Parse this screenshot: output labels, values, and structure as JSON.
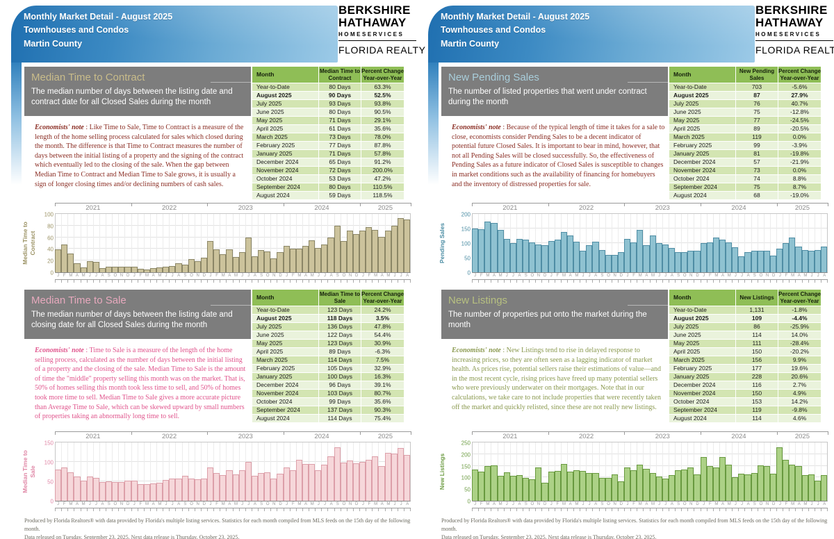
{
  "header": {
    "line1": "Monthly Market Detail - August 2025",
    "line2": "Townhouses and Condos",
    "line3": "Martin County"
  },
  "brand": {
    "line1": "BERKSHIRE",
    "line2": "HATHAWAY",
    "line3": "HOMESERVICES",
    "line4": "FLORIDA REALTY"
  },
  "labels": {
    "month_header": "Month",
    "percent_header": "Percent Change\nYear-over-Year",
    "note_prefix": "Economists' note",
    "note_sep": " :  ",
    "highlight_month": "August 2025"
  },
  "footer": {
    "line1": "Produced by Florida Realtors® with data provided by Florida's multiple listing services. Statistics for each month compiled from MLS feeds on the 15th day of the following month.",
    "line2": "Data released on Tuesday, September 23, 2025. Next data release is Thursday, October 23, 2025."
  },
  "sections": [
    {
      "id": "median-time-to-contract",
      "title": "Median Time to Contract",
      "subtitle": "The median number of days between the listing date and contract date for all Closed Sales during the month",
      "note": "Like Time to Sale, Time to Contract is a measure of the length of the home selling process calculated for sales which closed during the month.  The difference is that Time to Contract measures the number of days between the initial listing of a property and the signing of the contract which eventually led to the closing of the sale.  When the gap between Median Time to Contract and Median Time to Sale grows, it is usually a sign of longer closing times and/or declining numbers of cash sales.",
      "value_header": "Median Time to Contract",
      "colors": {
        "title": "#c9bc8a",
        "note": "#8b2e24",
        "bar_fill": "#ccc39c",
        "bar_border": "#8b8666",
        "axis": "#9b9264"
      },
      "table_rows": [
        {
          "month": "Year-to-Date",
          "value": "80 Days",
          "pct": "63.3%"
        },
        {
          "month": "August 2025",
          "value": "90 Days",
          "pct": "52.5%"
        },
        {
          "month": "July 2025",
          "value": "93 Days",
          "pct": "93.8%"
        },
        {
          "month": "June 2025",
          "value": "80 Days",
          "pct": "90.5%"
        },
        {
          "month": "May 2025",
          "value": "71 Days",
          "pct": "29.1%"
        },
        {
          "month": "April 2025",
          "value": "61 Days",
          "pct": "35.6%"
        },
        {
          "month": "March 2025",
          "value": "73 Days",
          "pct": "78.0%"
        },
        {
          "month": "February 2025",
          "value": "77 Days",
          "pct": "87.8%"
        },
        {
          "month": "January 2025",
          "value": "71 Days",
          "pct": "57.8%"
        },
        {
          "month": "December 2024",
          "value": "65 Days",
          "pct": "91.2%"
        },
        {
          "month": "November 2024",
          "value": "72 Days",
          "pct": "200.0%"
        },
        {
          "month": "October 2024",
          "value": "53 Days",
          "pct": "47.2%"
        },
        {
          "month": "September 2024",
          "value": "80 Days",
          "pct": "110.5%"
        },
        {
          "month": "August 2024",
          "value": "59 Days",
          "pct": "118.5%"
        }
      ]
    },
    {
      "id": "new-pending-sales",
      "title": "New Pending Sales",
      "subtitle": "The number of listed properties that went under contract during the month",
      "note": "Because of the typical length of time it takes for a sale to close, economists consider Pending Sales to be a decent indicator of potential future Closed Sales.  It is important to bear in mind, however, that not all Pending Sales will be closed successfully.  So, the effectiveness of Pending Sales as a future indicator of Closed Sales is susceptible to changes in market conditions such as the availability of financing  for homebuyers and the inventory of distressed properties for sale.",
      "value_header": "New Pending Sales",
      "colors": {
        "title": "#a9cedb",
        "note": "#8b2e24",
        "bar_fill": "#8fc2d1",
        "bar_border": "#4f8da4",
        "axis": "#4a8ca3"
      },
      "table_rows": [
        {
          "month": "Year-to-Date",
          "value": "703",
          "pct": "-5.6%"
        },
        {
          "month": "August 2025",
          "value": "87",
          "pct": "27.9%"
        },
        {
          "month": "July 2025",
          "value": "76",
          "pct": "40.7%"
        },
        {
          "month": "June 2025",
          "value": "75",
          "pct": "-12.8%"
        },
        {
          "month": "May 2025",
          "value": "77",
          "pct": "-24.5%"
        },
        {
          "month": "April 2025",
          "value": "89",
          "pct": "-20.5%"
        },
        {
          "month": "March 2025",
          "value": "119",
          "pct": "0.0%"
        },
        {
          "month": "February 2025",
          "value": "99",
          "pct": "-3.9%"
        },
        {
          "month": "January 2025",
          "value": "81",
          "pct": "-19.8%"
        },
        {
          "month": "December 2024",
          "value": "57",
          "pct": "-21.9%"
        },
        {
          "month": "November 2024",
          "value": "73",
          "pct": "0.0%"
        },
        {
          "month": "October 2024",
          "value": "74",
          "pct": "8.8%"
        },
        {
          "month": "September 2024",
          "value": "75",
          "pct": "8.7%"
        },
        {
          "month": "August 2024",
          "value": "68",
          "pct": "-19.0%"
        }
      ]
    },
    {
      "id": "median-time-to-sale",
      "title": "Median Time to Sale",
      "subtitle": "The median number of days between the listing date and closing date for all Closed Sales during the month",
      "note": "Time to Sale is a measure of the length of the home selling process, calculated as the number of days between the initial listing of a property and the closing of the sale.  Median Time to Sale is the amount of time the \"middle\" property selling this month was on the market.  That is, 50% of homes selling this month took less time to sell, and 50% of homes took more time to sell.  Median Time to Sale gives a more accurate picture than Average Time to Sale, which can be skewed upward by small numbers of properties taking an abnormally long time to sell.",
      "value_header": "Median Time to Sale",
      "colors": {
        "title": "#e7a9bd",
        "note": "#e0548c",
        "bar_fill": "#f6d7da",
        "bar_border": "#dc9fa9",
        "axis": "#e087a6"
      },
      "table_rows": [
        {
          "month": "Year-to-Date",
          "value": "123 Days",
          "pct": "24.2%"
        },
        {
          "month": "August 2025",
          "value": "118 Days",
          "pct": "3.5%"
        },
        {
          "month": "July 2025",
          "value": "136 Days",
          "pct": "47.8%"
        },
        {
          "month": "June 2025",
          "value": "122 Days",
          "pct": "54.4%"
        },
        {
          "month": "May 2025",
          "value": "123 Days",
          "pct": "30.9%"
        },
        {
          "month": "April 2025",
          "value": "89 Days",
          "pct": "-6.3%"
        },
        {
          "month": "March 2025",
          "value": "114 Days",
          "pct": "7.5%"
        },
        {
          "month": "February 2025",
          "value": "105 Days",
          "pct": "32.9%"
        },
        {
          "month": "January 2025",
          "value": "100 Days",
          "pct": "16.3%"
        },
        {
          "month": "December 2024",
          "value": "96 Days",
          "pct": "39.1%"
        },
        {
          "month": "November 2024",
          "value": "103 Days",
          "pct": "80.7%"
        },
        {
          "month": "October 2024",
          "value": "99 Days",
          "pct": "35.6%"
        },
        {
          "month": "September 2024",
          "value": "137 Days",
          "pct": "90.3%"
        },
        {
          "month": "August 2024",
          "value": "114 Days",
          "pct": "75.4%"
        }
      ]
    },
    {
      "id": "new-listings",
      "title": "New Listings",
      "subtitle": "The number of properties put onto the market during the month",
      "note": "New Listings tend to rise in delayed response to increasing prices, so they are often seen as a lagging indicator of market health.  As prices rise, potential sellers raise their estimations of value—and in the most recent cycle, rising prices have freed up many potential sellers who were previously underwater on their mortgages.  Note that in our calculations, we take care to not include properties that were recently taken off the market and quickly relisted, since these are not really new listings.",
      "value_header": "New Listings",
      "colors": {
        "title": "#b7c080",
        "note": "#8a994f",
        "bar_fill": "#acd186",
        "bar_border": "#68993f",
        "axis": "#6d9c43"
      },
      "table_rows": [
        {
          "month": "Year-to-Date",
          "value": "1,131",
          "pct": "-1.8%"
        },
        {
          "month": "August 2025",
          "value": "109",
          "pct": "-4.4%"
        },
        {
          "month": "July 2025",
          "value": "86",
          "pct": "-25.9%"
        },
        {
          "month": "June 2025",
          "value": "114",
          "pct": "14.0%"
        },
        {
          "month": "May 2025",
          "value": "111",
          "pct": "-28.4%"
        },
        {
          "month": "April 2025",
          "value": "150",
          "pct": "-20.2%"
        },
        {
          "month": "March 2025",
          "value": "156",
          "pct": "9.9%"
        },
        {
          "month": "February 2025",
          "value": "177",
          "pct": "19.6%"
        },
        {
          "month": "January 2025",
          "value": "228",
          "pct": "20.6%"
        },
        {
          "month": "December 2024",
          "value": "116",
          "pct": "2.7%"
        },
        {
          "month": "November 2024",
          "value": "150",
          "pct": "4.9%"
        },
        {
          "month": "October 2024",
          "value": "153",
          "pct": "14.2%"
        },
        {
          "month": "September 2024",
          "value": "119",
          "pct": "-9.8%"
        },
        {
          "month": "August 2024",
          "value": "114",
          "pct": "4.6%"
        }
      ]
    }
  ],
  "chart_years": [
    {
      "label": "2021",
      "months": 12
    },
    {
      "label": "2022",
      "months": 12
    },
    {
      "label": "2023",
      "months": 12
    },
    {
      "label": "2024",
      "months": 12
    },
    {
      "label": "2025",
      "months": 8
    }
  ],
  "month_letters": "JFMAMJJASOND",
  "chart_data": [
    {
      "type": "bar",
      "title": "Median Time to Contract",
      "ylabel": "Median Time to\nContract",
      "ylim": [
        0,
        100
      ],
      "yticks": [
        0,
        20,
        40,
        60,
        80,
        100
      ],
      "values": [
        39,
        48,
        32,
        15,
        8,
        19,
        18,
        7,
        9,
        9,
        10,
        9,
        9,
        6,
        5,
        7,
        8,
        10,
        11,
        15,
        13,
        23,
        19,
        25,
        53,
        39,
        31,
        39,
        26,
        35,
        60,
        27,
        38,
        36,
        24,
        34,
        45,
        41,
        41,
        45,
        55,
        42,
        48,
        59,
        80,
        53,
        72,
        65,
        71,
        77,
        73,
        61,
        71,
        80,
        93,
        90
      ]
    },
    {
      "type": "bar",
      "title": "New Pending Sales",
      "ylabel": "Pending Sales",
      "ylim": [
        0,
        200
      ],
      "yticks": [
        0,
        50,
        100,
        150,
        200
      ],
      "values": [
        150,
        148,
        175,
        170,
        145,
        114,
        100,
        114,
        112,
        103,
        96,
        94,
        107,
        111,
        138,
        126,
        105,
        74,
        93,
        105,
        76,
        60,
        60,
        69,
        114,
        102,
        145,
        92,
        126,
        100,
        96,
        84,
        69,
        68,
        73,
        73,
        101,
        103,
        119,
        112,
        102,
        86,
        54,
        68,
        75,
        74,
        73,
        57,
        81,
        99,
        119,
        89,
        77,
        75,
        76,
        87
      ]
    },
    {
      "type": "bar",
      "title": "Median Time to Sale",
      "ylabel": "Median Time to\nSale",
      "ylim": [
        0,
        150
      ],
      "yticks": [
        0,
        50,
        100,
        150
      ],
      "values": [
        81,
        86,
        73,
        62,
        52,
        62,
        59,
        49,
        50,
        48,
        49,
        51,
        52,
        43,
        43,
        45,
        47,
        54,
        57,
        58,
        64,
        57,
        56,
        57,
        86,
        71,
        66,
        78,
        68,
        78,
        100,
        65,
        72,
        73,
        57,
        69,
        86,
        79,
        106,
        95,
        94,
        79,
        92,
        114,
        137,
        99,
        103,
        96,
        100,
        105,
        114,
        89,
        123,
        122,
        136,
        118
      ]
    },
    {
      "type": "bar",
      "title": "New Listings",
      "ylabel": "New Listings",
      "ylim": [
        0,
        250
      ],
      "yticks": [
        0,
        50,
        100,
        150,
        200,
        250
      ],
      "values": [
        135,
        126,
        150,
        153,
        108,
        121,
        108,
        110,
        97,
        91,
        144,
        76,
        124,
        129,
        159,
        124,
        130,
        127,
        118,
        118,
        97,
        98,
        112,
        82,
        144,
        132,
        156,
        136,
        118,
        103,
        94,
        109,
        132,
        134,
        143,
        113,
        188,
        148,
        142,
        188,
        155,
        100,
        116,
        114,
        119,
        153,
        150,
        116,
        228,
        177,
        156,
        150,
        111,
        114,
        86,
        109
      ]
    }
  ]
}
